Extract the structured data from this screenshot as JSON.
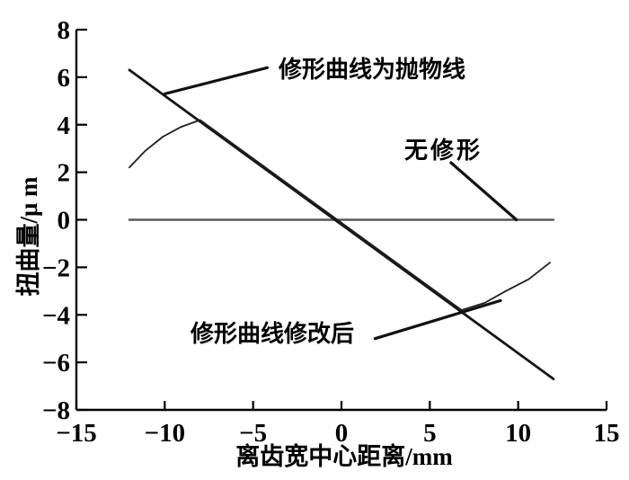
{
  "figure": {
    "background": "#ffffff",
    "axis_color": "#000000",
    "leader_color": "#111111"
  },
  "chart_data": {
    "type": "line",
    "title": "",
    "xlabel": "离齿宽中心距离/mm",
    "ylabel": "扭曲量/μ m",
    "xlim": [
      -15,
      15
    ],
    "ylim": [
      -8,
      8
    ],
    "grid": false,
    "legend": "none",
    "xtick_values": [
      -15,
      -10,
      -5,
      0,
      5,
      10,
      15
    ],
    "ytick_values": [
      8,
      6,
      4,
      2,
      0,
      -2,
      -4,
      -6,
      -8
    ],
    "xtick_labels": [
      "−15",
      "−10",
      "−5",
      "0",
      "5",
      "10",
      "15"
    ],
    "ytick_labels": [
      "8",
      "6",
      "4",
      "2",
      "0",
      "−2",
      "−4",
      "−6",
      "−8"
    ],
    "series": [
      {
        "name": "无修形",
        "color": "#5a5a5a",
        "stroke_width": 2.4,
        "points": [
          [
            -12,
            0
          ],
          [
            12,
            0
          ]
        ]
      },
      {
        "name": "修形曲线为抛物线",
        "color": "#161616",
        "stroke_width": 2.8,
        "points": [
          [
            -12,
            6.3
          ],
          [
            12,
            -6.7
          ]
        ]
      },
      {
        "name": "修形曲线修改后",
        "color": "#1f1f1f",
        "stroke_width": 1.8,
        "points": [
          [
            -12,
            2.2
          ],
          [
            -11.1,
            2.9
          ],
          [
            -10.1,
            3.5
          ],
          [
            -9.1,
            3.9
          ],
          [
            -8,
            4.2
          ],
          [
            6.8,
            -3.8
          ],
          [
            8.1,
            -3.5
          ],
          [
            9.3,
            -3.0
          ],
          [
            10.6,
            -2.5
          ],
          [
            11.8,
            -1.8
          ]
        ]
      }
    ],
    "annotations": [
      {
        "label": "修形曲线为抛物线",
        "leader_from": [
          -4.2,
          6.4
        ],
        "leader_to": [
          -10.0,
          5.3
        ]
      },
      {
        "label": "无修形",
        "leader_from": [
          6.2,
          2.4
        ],
        "leader_to": [
          9.9,
          0.0
        ]
      },
      {
        "label": "修形曲线修改后",
        "leader_from": [
          1.9,
          -5.0
        ],
        "leader_to": [
          9.0,
          -3.4
        ]
      }
    ]
  }
}
